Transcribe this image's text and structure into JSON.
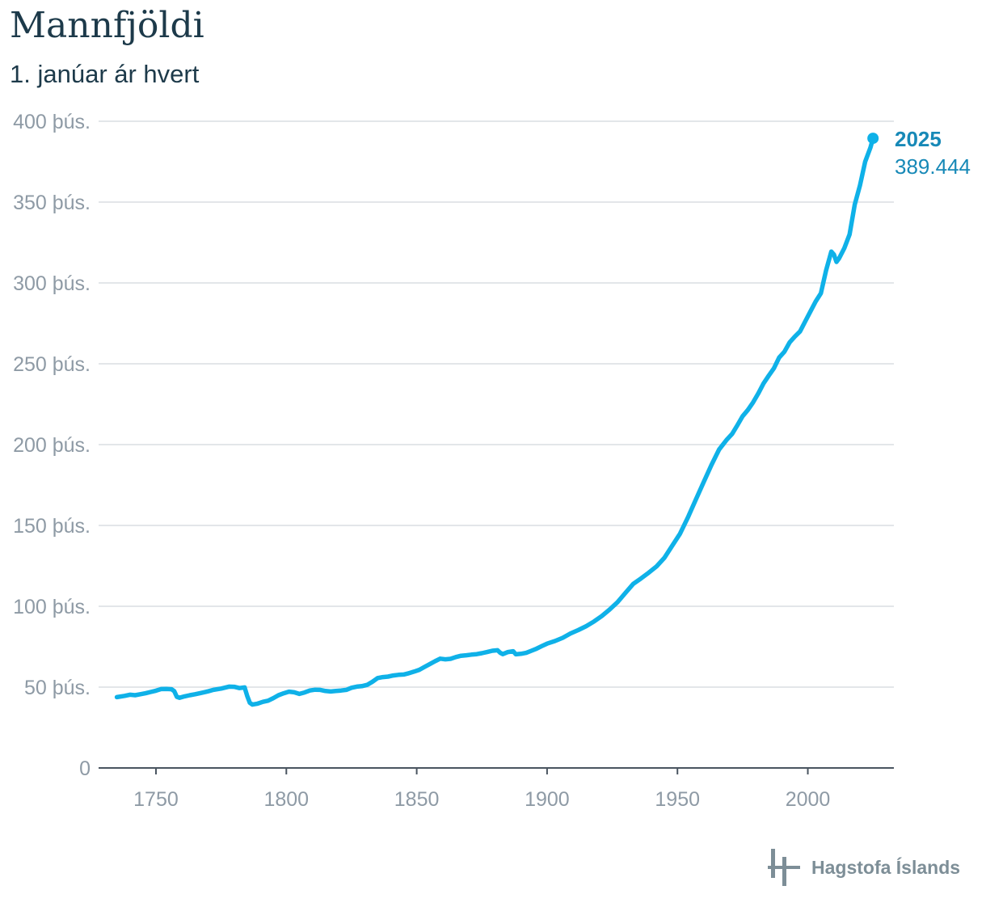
{
  "header": {
    "title": "Mannfjöldi",
    "subtitle": "1. janúar ár hvert"
  },
  "logo": {
    "text": "Hagstofa Íslands"
  },
  "colors": {
    "line": "#0fb1e8",
    "end_label": "#1789b7",
    "grid": "#e3e6e9",
    "axis": "#4a5560",
    "tick_text": "#8e9aa5",
    "title": "#1d3a4a",
    "logo": "#7d8e97"
  },
  "chart_data": {
    "type": "line",
    "title": "Mannfjöldi",
    "subtitle": "1. janúar ár hvert",
    "xlabel": "",
    "ylabel": "",
    "xlim": [
      1728,
      2033
    ],
    "ylim": [
      0,
      400000
    ],
    "grid": true,
    "x_ticks": [
      {
        "value": 1750,
        "label": "1750"
      },
      {
        "value": 1800,
        "label": "1800"
      },
      {
        "value": 1850,
        "label": "1850"
      },
      {
        "value": 1900,
        "label": "1900"
      },
      {
        "value": 1950,
        "label": "1950"
      },
      {
        "value": 2000,
        "label": "2000"
      }
    ],
    "y_ticks": [
      {
        "value": 0,
        "label": "0"
      },
      {
        "value": 50000,
        "label": "50 þús."
      },
      {
        "value": 100000,
        "label": "100 þús."
      },
      {
        "value": 150000,
        "label": "150 þús."
      },
      {
        "value": 200000,
        "label": "200 þús."
      },
      {
        "value": 250000,
        "label": "250 þús."
      },
      {
        "value": 300000,
        "label": "300 þús."
      },
      {
        "value": 350000,
        "label": "350 þús."
      },
      {
        "value": 400000,
        "label": "400 þús."
      }
    ],
    "end_label": {
      "year": "2025",
      "value_text": "389.444",
      "x": 2025,
      "y": 389444
    },
    "series": [
      {
        "name": "Mannfjöldi",
        "points": [
          [
            1735,
            43800
          ],
          [
            1738,
            44600
          ],
          [
            1740,
            45300
          ],
          [
            1742,
            45000
          ],
          [
            1744,
            45600
          ],
          [
            1746,
            46200
          ],
          [
            1748,
            47000
          ],
          [
            1750,
            47800
          ],
          [
            1752,
            48800
          ],
          [
            1754,
            48900
          ],
          [
            1756,
            48700
          ],
          [
            1757,
            47500
          ],
          [
            1758,
            44000
          ],
          [
            1759,
            43400
          ],
          [
            1761,
            44300
          ],
          [
            1763,
            45000
          ],
          [
            1765,
            45600
          ],
          [
            1767,
            46300
          ],
          [
            1770,
            47400
          ],
          [
            1772,
            48300
          ],
          [
            1775,
            49100
          ],
          [
            1778,
            50300
          ],
          [
            1780,
            50200
          ],
          [
            1782,
            49400
          ],
          [
            1784,
            49800
          ],
          [
            1785,
            44500
          ],
          [
            1786,
            40300
          ],
          [
            1787,
            39200
          ],
          [
            1789,
            39800
          ],
          [
            1791,
            40900
          ],
          [
            1793,
            41600
          ],
          [
            1795,
            43200
          ],
          [
            1797,
            45000
          ],
          [
            1799,
            46200
          ],
          [
            1801,
            47200
          ],
          [
            1803,
            46800
          ],
          [
            1805,
            45800
          ],
          [
            1807,
            46700
          ],
          [
            1809,
            47900
          ],
          [
            1811,
            48400
          ],
          [
            1813,
            48300
          ],
          [
            1815,
            47600
          ],
          [
            1817,
            47300
          ],
          [
            1819,
            47600
          ],
          [
            1821,
            47900
          ],
          [
            1823,
            48300
          ],
          [
            1825,
            49600
          ],
          [
            1827,
            50300
          ],
          [
            1829,
            50600
          ],
          [
            1831,
            51400
          ],
          [
            1833,
            53300
          ],
          [
            1835,
            55600
          ],
          [
            1837,
            56200
          ],
          [
            1839,
            56500
          ],
          [
            1841,
            57200
          ],
          [
            1843,
            57600
          ],
          [
            1845,
            57800
          ],
          [
            1847,
            58600
          ],
          [
            1849,
            59600
          ],
          [
            1851,
            60700
          ],
          [
            1853,
            62500
          ],
          [
            1855,
            64200
          ],
          [
            1857,
            66000
          ],
          [
            1859,
            67600
          ],
          [
            1861,
            67200
          ],
          [
            1863,
            67500
          ],
          [
            1865,
            68600
          ],
          [
            1867,
            69400
          ],
          [
            1869,
            69700
          ],
          [
            1871,
            70100
          ],
          [
            1873,
            70400
          ],
          [
            1875,
            71000
          ],
          [
            1877,
            71700
          ],
          [
            1879,
            72500
          ],
          [
            1881,
            72800
          ],
          [
            1882,
            71300
          ],
          [
            1883,
            70400
          ],
          [
            1885,
            71700
          ],
          [
            1887,
            72200
          ],
          [
            1888,
            70300
          ],
          [
            1890,
            70600
          ],
          [
            1892,
            71200
          ],
          [
            1894,
            72500
          ],
          [
            1896,
            73800
          ],
          [
            1898,
            75400
          ],
          [
            1900,
            76900
          ],
          [
            1903,
            78500
          ],
          [
            1906,
            80500
          ],
          [
            1909,
            83200
          ],
          [
            1912,
            85300
          ],
          [
            1915,
            87700
          ],
          [
            1918,
            90600
          ],
          [
            1921,
            94000
          ],
          [
            1924,
            98000
          ],
          [
            1927,
            102500
          ],
          [
            1930,
            108200
          ],
          [
            1933,
            113800
          ],
          [
            1936,
            117200
          ],
          [
            1939,
            120800
          ],
          [
            1942,
            124700
          ],
          [
            1945,
            130000
          ],
          [
            1948,
            137500
          ],
          [
            1951,
            144900
          ],
          [
            1954,
            154900
          ],
          [
            1957,
            165800
          ],
          [
            1960,
            176600
          ],
          [
            1963,
            187300
          ],
          [
            1966,
            197000
          ],
          [
            1969,
            203200
          ],
          [
            1971,
            206700
          ],
          [
            1973,
            212000
          ],
          [
            1975,
            217600
          ],
          [
            1977,
            221400
          ],
          [
            1979,
            226100
          ],
          [
            1981,
            231600
          ],
          [
            1983,
            237800
          ],
          [
            1985,
            242600
          ],
          [
            1987,
            247200
          ],
          [
            1989,
            253800
          ],
          [
            1991,
            257400
          ],
          [
            1993,
            263200
          ],
          [
            1995,
            266800
          ],
          [
            1997,
            270000
          ],
          [
            1999,
            276200
          ],
          [
            2001,
            282400
          ],
          [
            2003,
            288500
          ],
          [
            2005,
            293600
          ],
          [
            2007,
            307700
          ],
          [
            2009,
            319400
          ],
          [
            2010,
            317600
          ],
          [
            2011,
            313000
          ],
          [
            2012,
            315200
          ],
          [
            2014,
            321500
          ],
          [
            2016,
            330000
          ],
          [
            2018,
            348500
          ],
          [
            2020,
            360400
          ],
          [
            2022,
            375000
          ],
          [
            2024,
            383700
          ],
          [
            2025,
            389444
          ]
        ]
      }
    ]
  }
}
